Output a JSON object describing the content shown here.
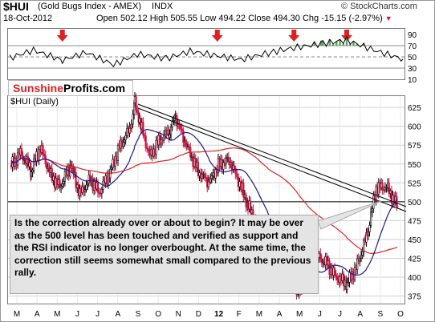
{
  "header": {
    "symbol": "$HUI",
    "name": "(Gold Bugs Index - AMEX)",
    "exchange": "INDX",
    "source": "© StockCharts.com",
    "date": "18-Oct-2012",
    "open_label": "Open",
    "open": "502.12",
    "high_label": "High",
    "high": "505.55",
    "low_label": "Low",
    "low": "494.22",
    "close_label": "Close",
    "close": "494.30",
    "chg_label": "Chg",
    "chg": "-15.15 (-2.97%)"
  },
  "logo": {
    "part1": "Sunshine",
    "part2": "Profits.com"
  },
  "annotation": "Is the correction already over or about to begin? It may be over as the 500 level has been touched and verified as support and the RSI indicator is no longer overbought. At the same time, the correction still seems somewhat small compared to the previous rally.",
  "colors": {
    "price_up": "#000000",
    "price_down": "#d01040",
    "ma_short": "#1a1a8c",
    "ma_long": "#e02020",
    "arrows": "#e02020",
    "logo_red": "#e02020",
    "rsi_overbought_fill": "#5aa05a"
  },
  "chart_data": [
    {
      "type": "line",
      "panel": "RSI",
      "ylim": [
        10,
        100
      ],
      "yticks": [
        "90",
        "70",
        "50",
        "30",
        "10"
      ],
      "reference_lines": [
        70,
        50,
        30
      ],
      "x": [
        "2012-03-01",
        "2012-03-15",
        "2012-04-01",
        "2012-04-15",
        "2012-05-01",
        "2012-05-15",
        "2012-06-01",
        "2012-06-15",
        "2012-07-01",
        "2012-07-15",
        "2012-08-01",
        "2012-08-15",
        "2012-09-01",
        "2012-09-15",
        "2012-10-01",
        "2012-10-18"
      ],
      "values": [
        48,
        62,
        44,
        58,
        36,
        55,
        47,
        60,
        52,
        45,
        58,
        66,
        74,
        80,
        62,
        46
      ],
      "red_arrow_markers": [
        "2012-04-01",
        "2012-07-01",
        "2012-08-15",
        "2012-09-15"
      ]
    },
    {
      "type": "candlestick",
      "panel": "price",
      "ylabel": "$HUI (Daily)",
      "ylim": [
        365,
        640
      ],
      "yticks": [
        "625",
        "600",
        "575",
        "550",
        "525",
        "500",
        "475",
        "450",
        "425",
        "400",
        "375"
      ],
      "xticks": [
        "M",
        "A",
        "M",
        "J",
        "J",
        "A",
        "S",
        "O",
        "N",
        "D",
        "12",
        "F",
        "M",
        "A",
        "M",
        "J",
        "J",
        "A",
        "S",
        "O"
      ],
      "horizontal_line": 500,
      "x": [
        "2011-03-01",
        "2011-03-15",
        "2011-04-01",
        "2011-04-15",
        "2011-05-01",
        "2011-05-15",
        "2011-06-01",
        "2011-06-15",
        "2011-07-01",
        "2011-07-15",
        "2011-08-01",
        "2011-08-15",
        "2011-09-01",
        "2011-09-08",
        "2011-09-15",
        "2011-10-01",
        "2011-10-15",
        "2011-11-01",
        "2011-11-10",
        "2011-11-25",
        "2011-12-15",
        "2012-01-01",
        "2012-01-15",
        "2012-02-01",
        "2012-02-15",
        "2012-03-01",
        "2012-03-15",
        "2012-04-01",
        "2012-04-15",
        "2012-05-01",
        "2012-05-15",
        "2012-06-01",
        "2012-06-15",
        "2012-07-01",
        "2012-07-15",
        "2012-08-01",
        "2012-08-15",
        "2012-09-01",
        "2012-09-15",
        "2012-10-01",
        "2012-10-18"
      ],
      "close": [
        548,
        565,
        542,
        572,
        535,
        520,
        548,
        510,
        530,
        512,
        540,
        572,
        598,
        630,
        608,
        560,
        580,
        595,
        612,
        578,
        540,
        525,
        548,
        556,
        528,
        495,
        470,
        455,
        470,
        440,
        375,
        410,
        428,
        418,
        400,
        392,
        412,
        455,
        518,
        520,
        494
      ]
    }
  ]
}
